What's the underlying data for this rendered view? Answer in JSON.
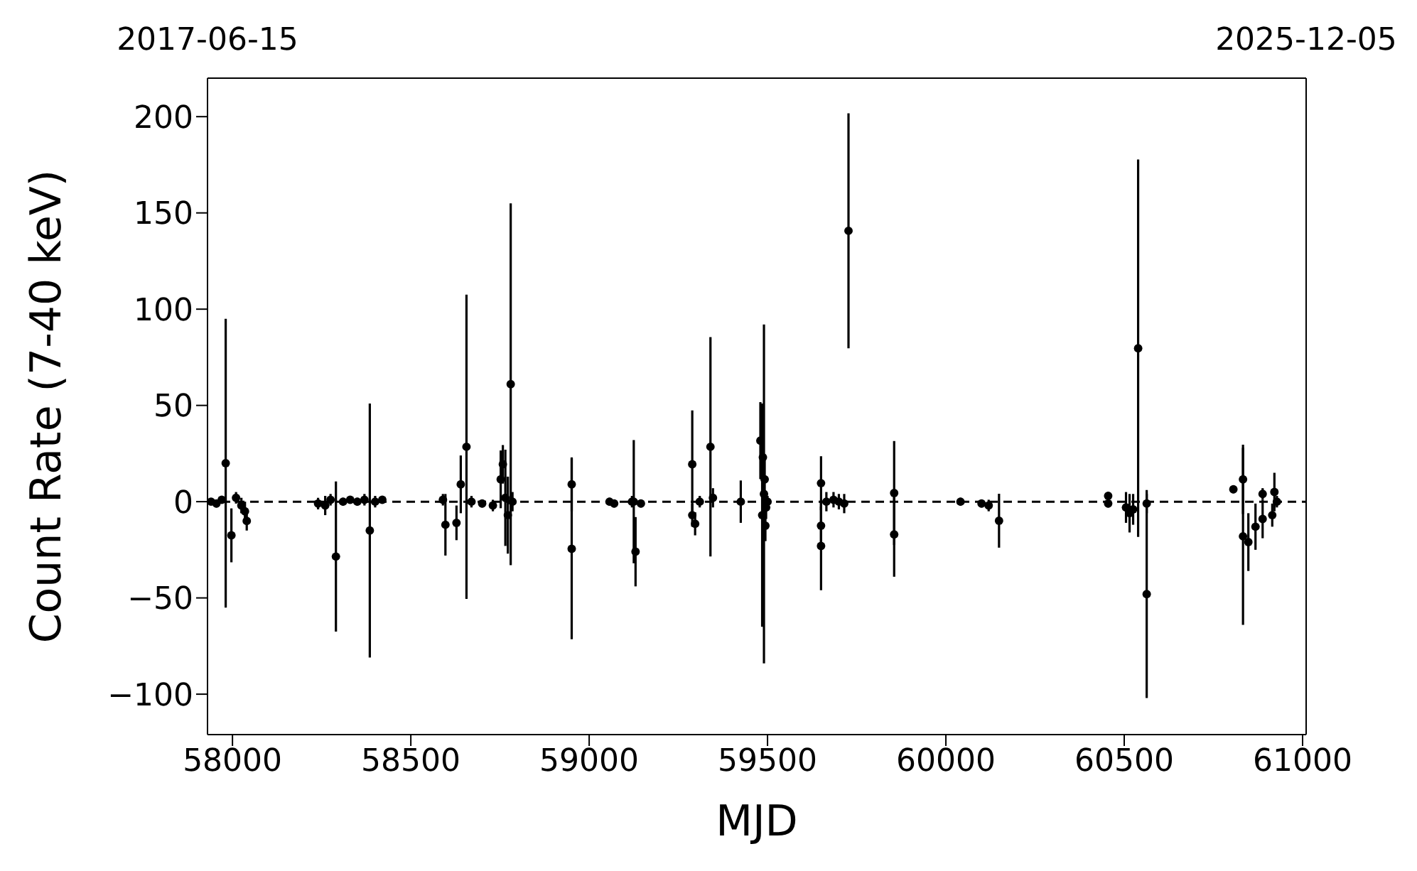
{
  "chart_data": {
    "type": "scatter",
    "xlabel": "MJD",
    "ylabel": "Count Rate (7-40 keV)",
    "marker": "circle",
    "xlim": [
      57930,
      61010
    ],
    "xticks": [
      58000,
      58500,
      59000,
      59500,
      60000,
      60500,
      61000
    ],
    "x2lim": [
      "2017-06-15",
      "2025-12-05"
    ],
    "x2ticks": [
      "2017-06-15",
      "2025-12-05"
    ],
    "ylim": [
      -121,
      220
    ],
    "yticks": [
      {
        "value": -100,
        "label": "−100"
      },
      {
        "value": -50,
        "label": "−50"
      },
      0,
      50,
      100,
      150,
      200
    ],
    "ref_lines": [
      {
        "axis": "y",
        "value": 0,
        "color": "#000000",
        "line_style": "dashed"
      }
    ],
    "series": [
      {
        "color": "#000000",
        "x": [
          57940,
          57955,
          57970,
          57981,
          57997,
          58010,
          58025,
          58035,
          58040,
          58240,
          58260,
          58275,
          58290,
          58310,
          58330,
          58350,
          58370,
          58385,
          58400,
          58420,
          58590,
          58597,
          58628,
          58640,
          58656,
          58670,
          58700,
          58730,
          58752,
          58758,
          58765,
          58772,
          58780,
          58785,
          58951,
          58951,
          59057,
          59070,
          59120,
          59125,
          59130,
          59145,
          59289,
          59289,
          59297,
          59310,
          59340,
          59347,
          59425,
          59480,
          59485,
          59487,
          59490,
          59492,
          59494,
          59496,
          59500,
          59650,
          59650,
          59650,
          59665,
          59685,
          59700,
          59715,
          59727,
          59855,
          59855,
          60041,
          60100,
          60120,
          60149,
          60455,
          60455,
          60505,
          60515,
          60525,
          60539,
          60563,
          60563,
          60806,
          60833,
          60833,
          60848,
          60868,
          60888,
          60888,
          60915,
          60921,
          60928
        ],
        "values": [
          0,
          -1,
          1,
          20,
          -17.5,
          2,
          -2,
          -5,
          -10,
          -1,
          -2,
          1,
          -28.5,
          0,
          1,
          0,
          1,
          -15,
          0,
          1,
          1,
          -12,
          -11,
          9,
          28.5,
          0,
          -1,
          -2,
          11.6,
          19.4,
          2,
          -7,
          61,
          0,
          9,
          -24.5,
          0,
          -1,
          0,
          0,
          -26,
          -1,
          19.4,
          -7,
          -11.5,
          0,
          28.5,
          2,
          0,
          31.7,
          -7,
          23,
          4,
          11.6,
          -12.5,
          -3,
          0,
          9.6,
          -12.5,
          -23,
          0,
          1,
          0,
          -1,
          140.7,
          4.5,
          -17,
          0,
          -1,
          -2,
          -9.9,
          3,
          -1,
          -3,
          -6,
          -4,
          79.7,
          -1,
          -48,
          6.4,
          11.6,
          -18,
          -21,
          -13,
          -9,
          4,
          -7,
          5,
          0
        ],
        "errors": [
          1,
          2,
          2,
          75,
          14,
          3,
          4,
          5,
          5,
          3,
          5,
          3,
          39,
          2,
          2,
          2,
          3,
          66,
          3,
          2,
          3,
          16,
          9,
          15,
          79,
          3,
          2,
          3,
          15,
          10,
          25,
          20,
          94,
          5,
          14,
          47,
          2,
          2,
          3,
          32,
          18,
          2,
          28,
          6,
          6,
          3,
          57,
          5,
          11,
          20,
          58,
          15,
          88,
          10,
          8,
          6,
          3,
          14,
          10,
          23,
          5,
          4,
          4,
          5,
          61,
          27,
          22,
          2,
          2,
          3,
          14,
          2,
          2,
          8,
          10,
          8,
          98,
          5,
          54,
          2,
          18,
          46,
          15,
          12,
          10,
          3,
          6,
          10,
          3
        ]
      }
    ]
  }
}
